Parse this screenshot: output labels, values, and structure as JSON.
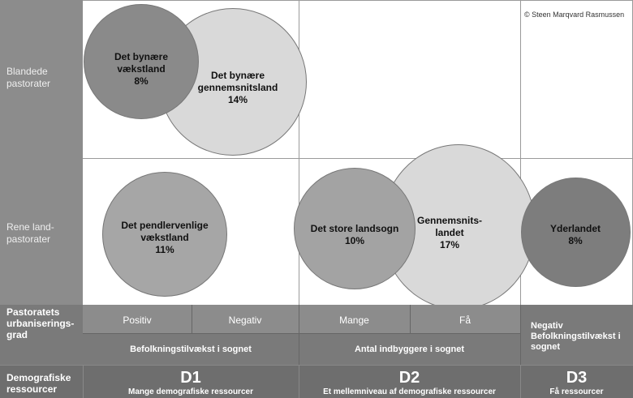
{
  "copyright": "© Steen Marqvard Rasmussen",
  "rows": {
    "blandede": "Blandede pastorater",
    "rene": "Rene land-pastorater"
  },
  "axis_header": {
    "pastoratets": "Pastoratets urbaniserings-grad",
    "demografiske": "Demografiske ressourcer"
  },
  "subcategories": {
    "positiv": "Positiv",
    "negativ": "Negativ",
    "mange": "Mange",
    "faa": "Få"
  },
  "group_labels": {
    "befolkning": "Befolkningstilvækst i sognet",
    "antal": "Antal indbyggere i sognet",
    "negativ_befolkning": "Negativ Befolkningstilvækst i sognet"
  },
  "columns": [
    {
      "code": "D1",
      "desc": "Mange demografiske ressourcer"
    },
    {
      "code": "D2",
      "desc": "Et mellemniveau af demografiske ressourcer"
    },
    {
      "code": "D3",
      "desc": "Få ressourcer"
    }
  ],
  "circles": [
    {
      "label": "Det bynære gennemsnitsland",
      "value": "14%",
      "color": "#d9d9d9"
    },
    {
      "label": "Det bynære vækstland",
      "value": "8%",
      "color": "#8a8a8a"
    },
    {
      "label": "Det pendlervenlige vækstland",
      "value": "11%",
      "color": "#a6a6a6"
    },
    {
      "label": "Gennemsnits-landet",
      "value": "17%",
      "color": "#d9d9d9"
    },
    {
      "label": "Det store landsogn",
      "value": "10%",
      "color": "#a3a3a3"
    },
    {
      "label": "Yderlandet",
      "value": "8%",
      "color": "#7d7d7d"
    }
  ],
  "colors": {
    "left_band": "#8c8c8c",
    "header_band": "#7a7a7a",
    "bottom_band": "#6e6e6e",
    "sub_band": "#8c8c8c"
  }
}
